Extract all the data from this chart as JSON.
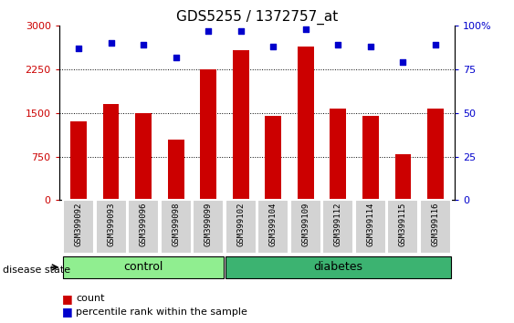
{
  "title": "GDS5255 / 1372757_at",
  "samples": [
    "GSM399092",
    "GSM399093",
    "GSM399096",
    "GSM399098",
    "GSM399099",
    "GSM399102",
    "GSM399104",
    "GSM399109",
    "GSM399112",
    "GSM399114",
    "GSM399115",
    "GSM399116"
  ],
  "bar_values": [
    1350,
    1650,
    1500,
    1050,
    2250,
    2580,
    1450,
    2650,
    1570,
    1450,
    800,
    1580
  ],
  "dot_values": [
    87,
    90,
    89,
    82,
    97,
    97,
    88,
    98,
    89,
    88,
    79,
    89
  ],
  "bar_color": "#cc0000",
  "dot_color": "#0000cc",
  "ylim_left": [
    0,
    3000
  ],
  "ylim_right": [
    0,
    100
  ],
  "yticks_left": [
    0,
    750,
    1500,
    2250,
    3000
  ],
  "ytick_labels_left": [
    "0",
    "750",
    "1500",
    "2250",
    "3000"
  ],
  "yticks_right": [
    0,
    25,
    50,
    75,
    100
  ],
  "ytick_labels_right": [
    "0",
    "25",
    "50",
    "75",
    "100%"
  ],
  "control_samples": 5,
  "diabetes_samples": 7,
  "control_label": "control",
  "diabetes_label": "diabetes",
  "disease_state_label": "disease state",
  "legend_bar_label": "count",
  "legend_dot_label": "percentile rank within the sample",
  "control_color": "#90ee90",
  "diabetes_color": "#3cb371",
  "bar_width": 0.5,
  "title_fontsize": 11,
  "tick_fontsize": 8,
  "label_fontsize": 9
}
